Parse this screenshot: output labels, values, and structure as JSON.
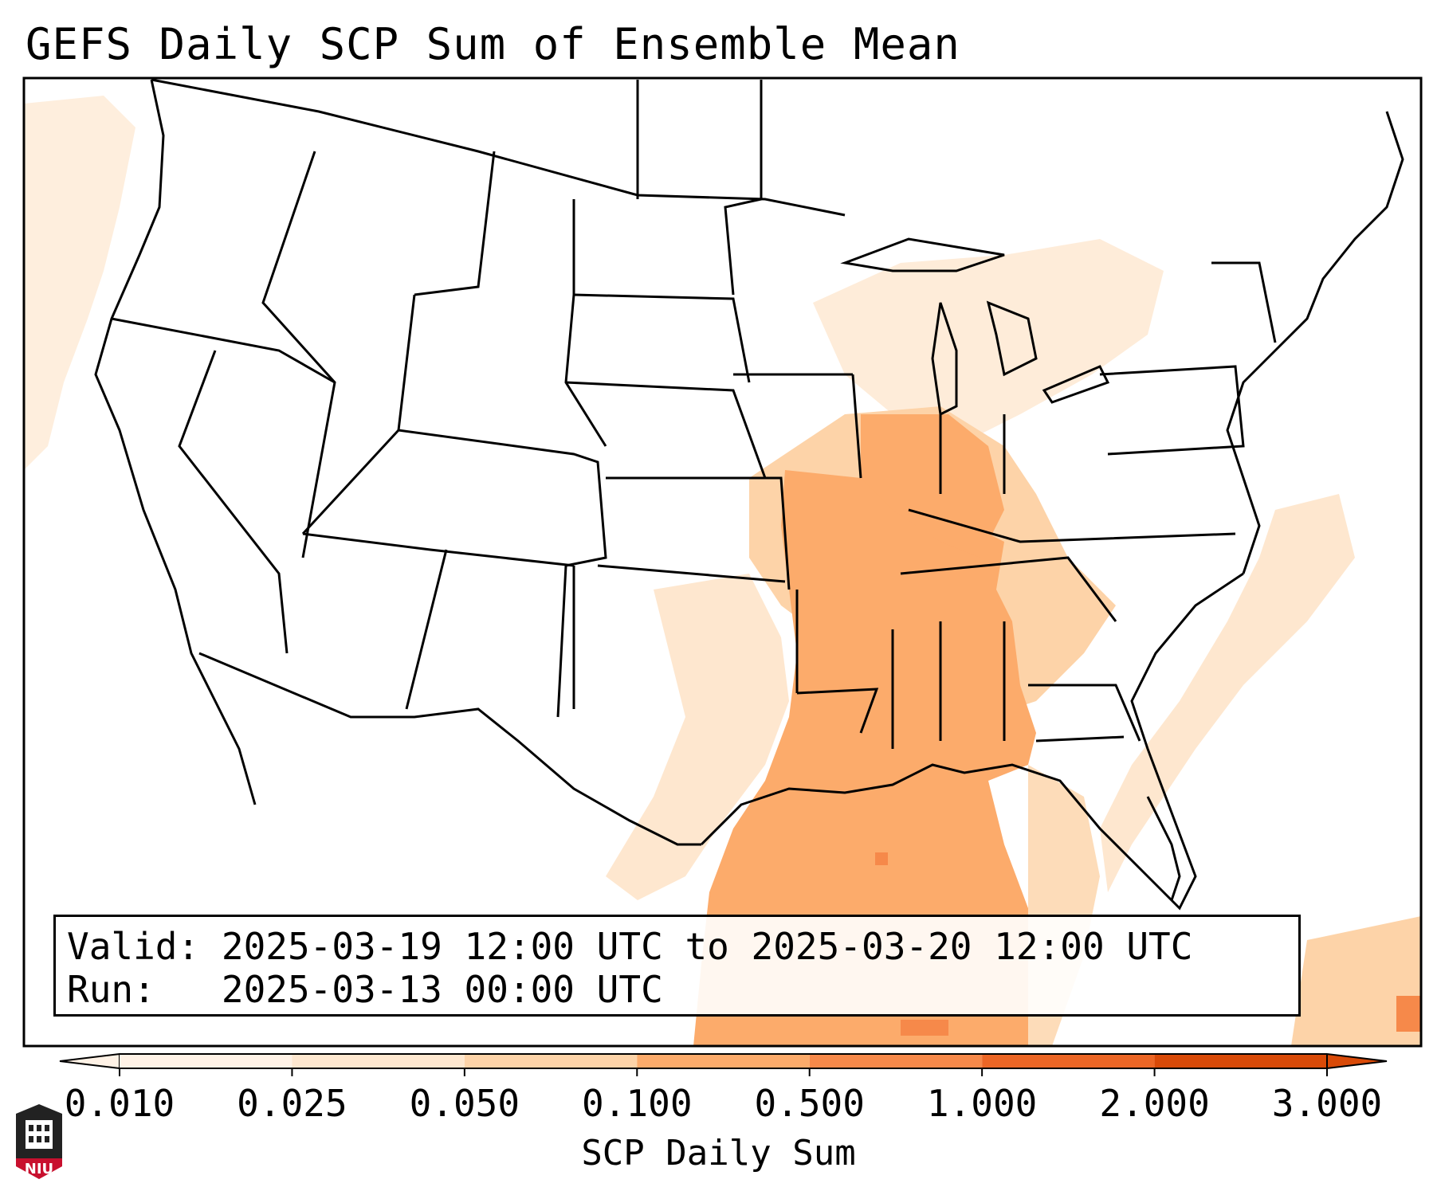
{
  "title": "GEFS Daily SCP Sum of Ensemble Mean",
  "info": {
    "valid_label": "Valid:",
    "valid_value": "2025-03-19 12:00 UTC to 2025-03-20 12:00 UTC",
    "run_label": "Run:",
    "run_value": "2025-03-13 00:00 UTC"
  },
  "colorbar": {
    "label": "SCP Daily Sum",
    "ticks": [
      "0.010",
      "0.025",
      "0.050",
      "0.100",
      "0.500",
      "1.000",
      "2.000",
      "3.000"
    ],
    "colors": [
      "#fff2e6",
      "#fee7cf",
      "#fdd3a8",
      "#fcab6b",
      "#f6894a",
      "#ec6625",
      "#d94a08"
    ]
  },
  "logo": {
    "text": "NIU",
    "color": "#c8102e"
  },
  "map": {
    "region": "Contiguous United States",
    "peak_color": "#ec6625"
  }
}
